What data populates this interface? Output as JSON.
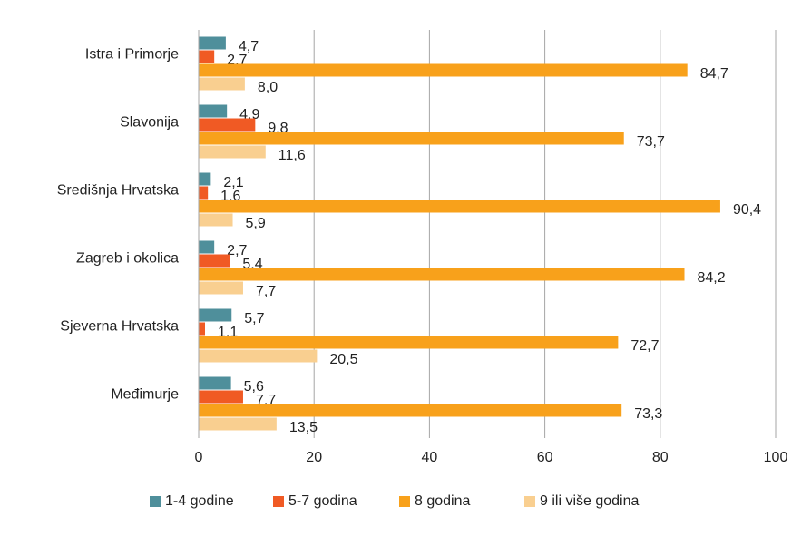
{
  "chart_data": {
    "type": "hbar",
    "categories": [
      "Istra i Primorje",
      "Slavonija",
      "Središnja Hrvatska",
      "Zagreb i okolica",
      "Sjeverna Hrvatska",
      "Međimurje"
    ],
    "series": [
      {
        "name": "1-4 godine",
        "color": "#4f8f9b",
        "values": [
          4.7,
          4.9,
          2.1,
          2.7,
          5.7,
          5.6
        ],
        "value_labels": [
          "4,7",
          "4,9",
          "2,1",
          "2,7",
          "5,7",
          "5,6"
        ]
      },
      {
        "name": "5-7 godina",
        "color": "#f05a24",
        "values": [
          2.7,
          9.8,
          1.6,
          5.4,
          1.1,
          7.7
        ],
        "value_labels": [
          "2,7",
          "9,8",
          "1,6",
          "5,4",
          "1,1",
          "7,7"
        ]
      },
      {
        "name": "8 godina",
        "color": "#f8a11b",
        "values": [
          84.7,
          73.7,
          90.4,
          84.2,
          72.7,
          73.3
        ],
        "value_labels": [
          "84,7",
          "73,7",
          "90,4",
          "84,2",
          "72,7",
          "73,3"
        ]
      },
      {
        "name": "9 ili više godina",
        "color": "#f9cf90",
        "values": [
          8.0,
          11.6,
          5.9,
          7.7,
          20.5,
          13.5
        ],
        "value_labels": [
          "8,0",
          "11,6",
          "5,9",
          "7,7",
          "20,5",
          "13,5"
        ]
      }
    ],
    "xlim": [
      0,
      100
    ],
    "xticks": [
      0,
      20,
      40,
      60,
      80,
      100
    ],
    "grid": true,
    "legend": "bottom"
  }
}
